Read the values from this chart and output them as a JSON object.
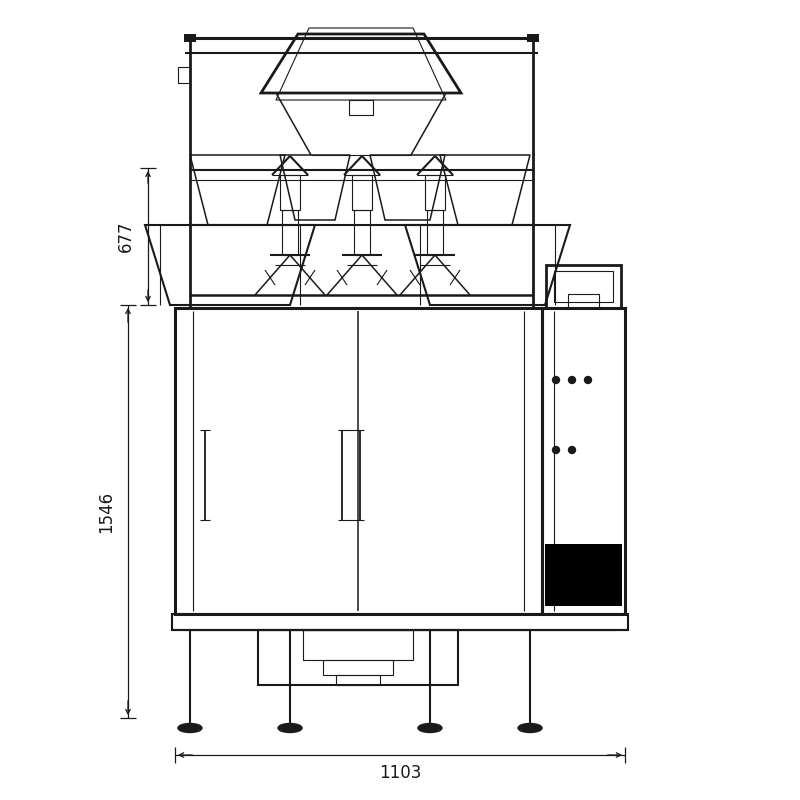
{
  "bg_color": "#ffffff",
  "line_color": "#1a1a1a",
  "lw_main": 1.5,
  "lw_thin": 0.8,
  "lw_thick": 2.2,
  "dim_677": "677",
  "dim_1546": "1546",
  "dim_1103": "1103",
  "figsize": [
    8,
    8
  ],
  "dpi": 100
}
